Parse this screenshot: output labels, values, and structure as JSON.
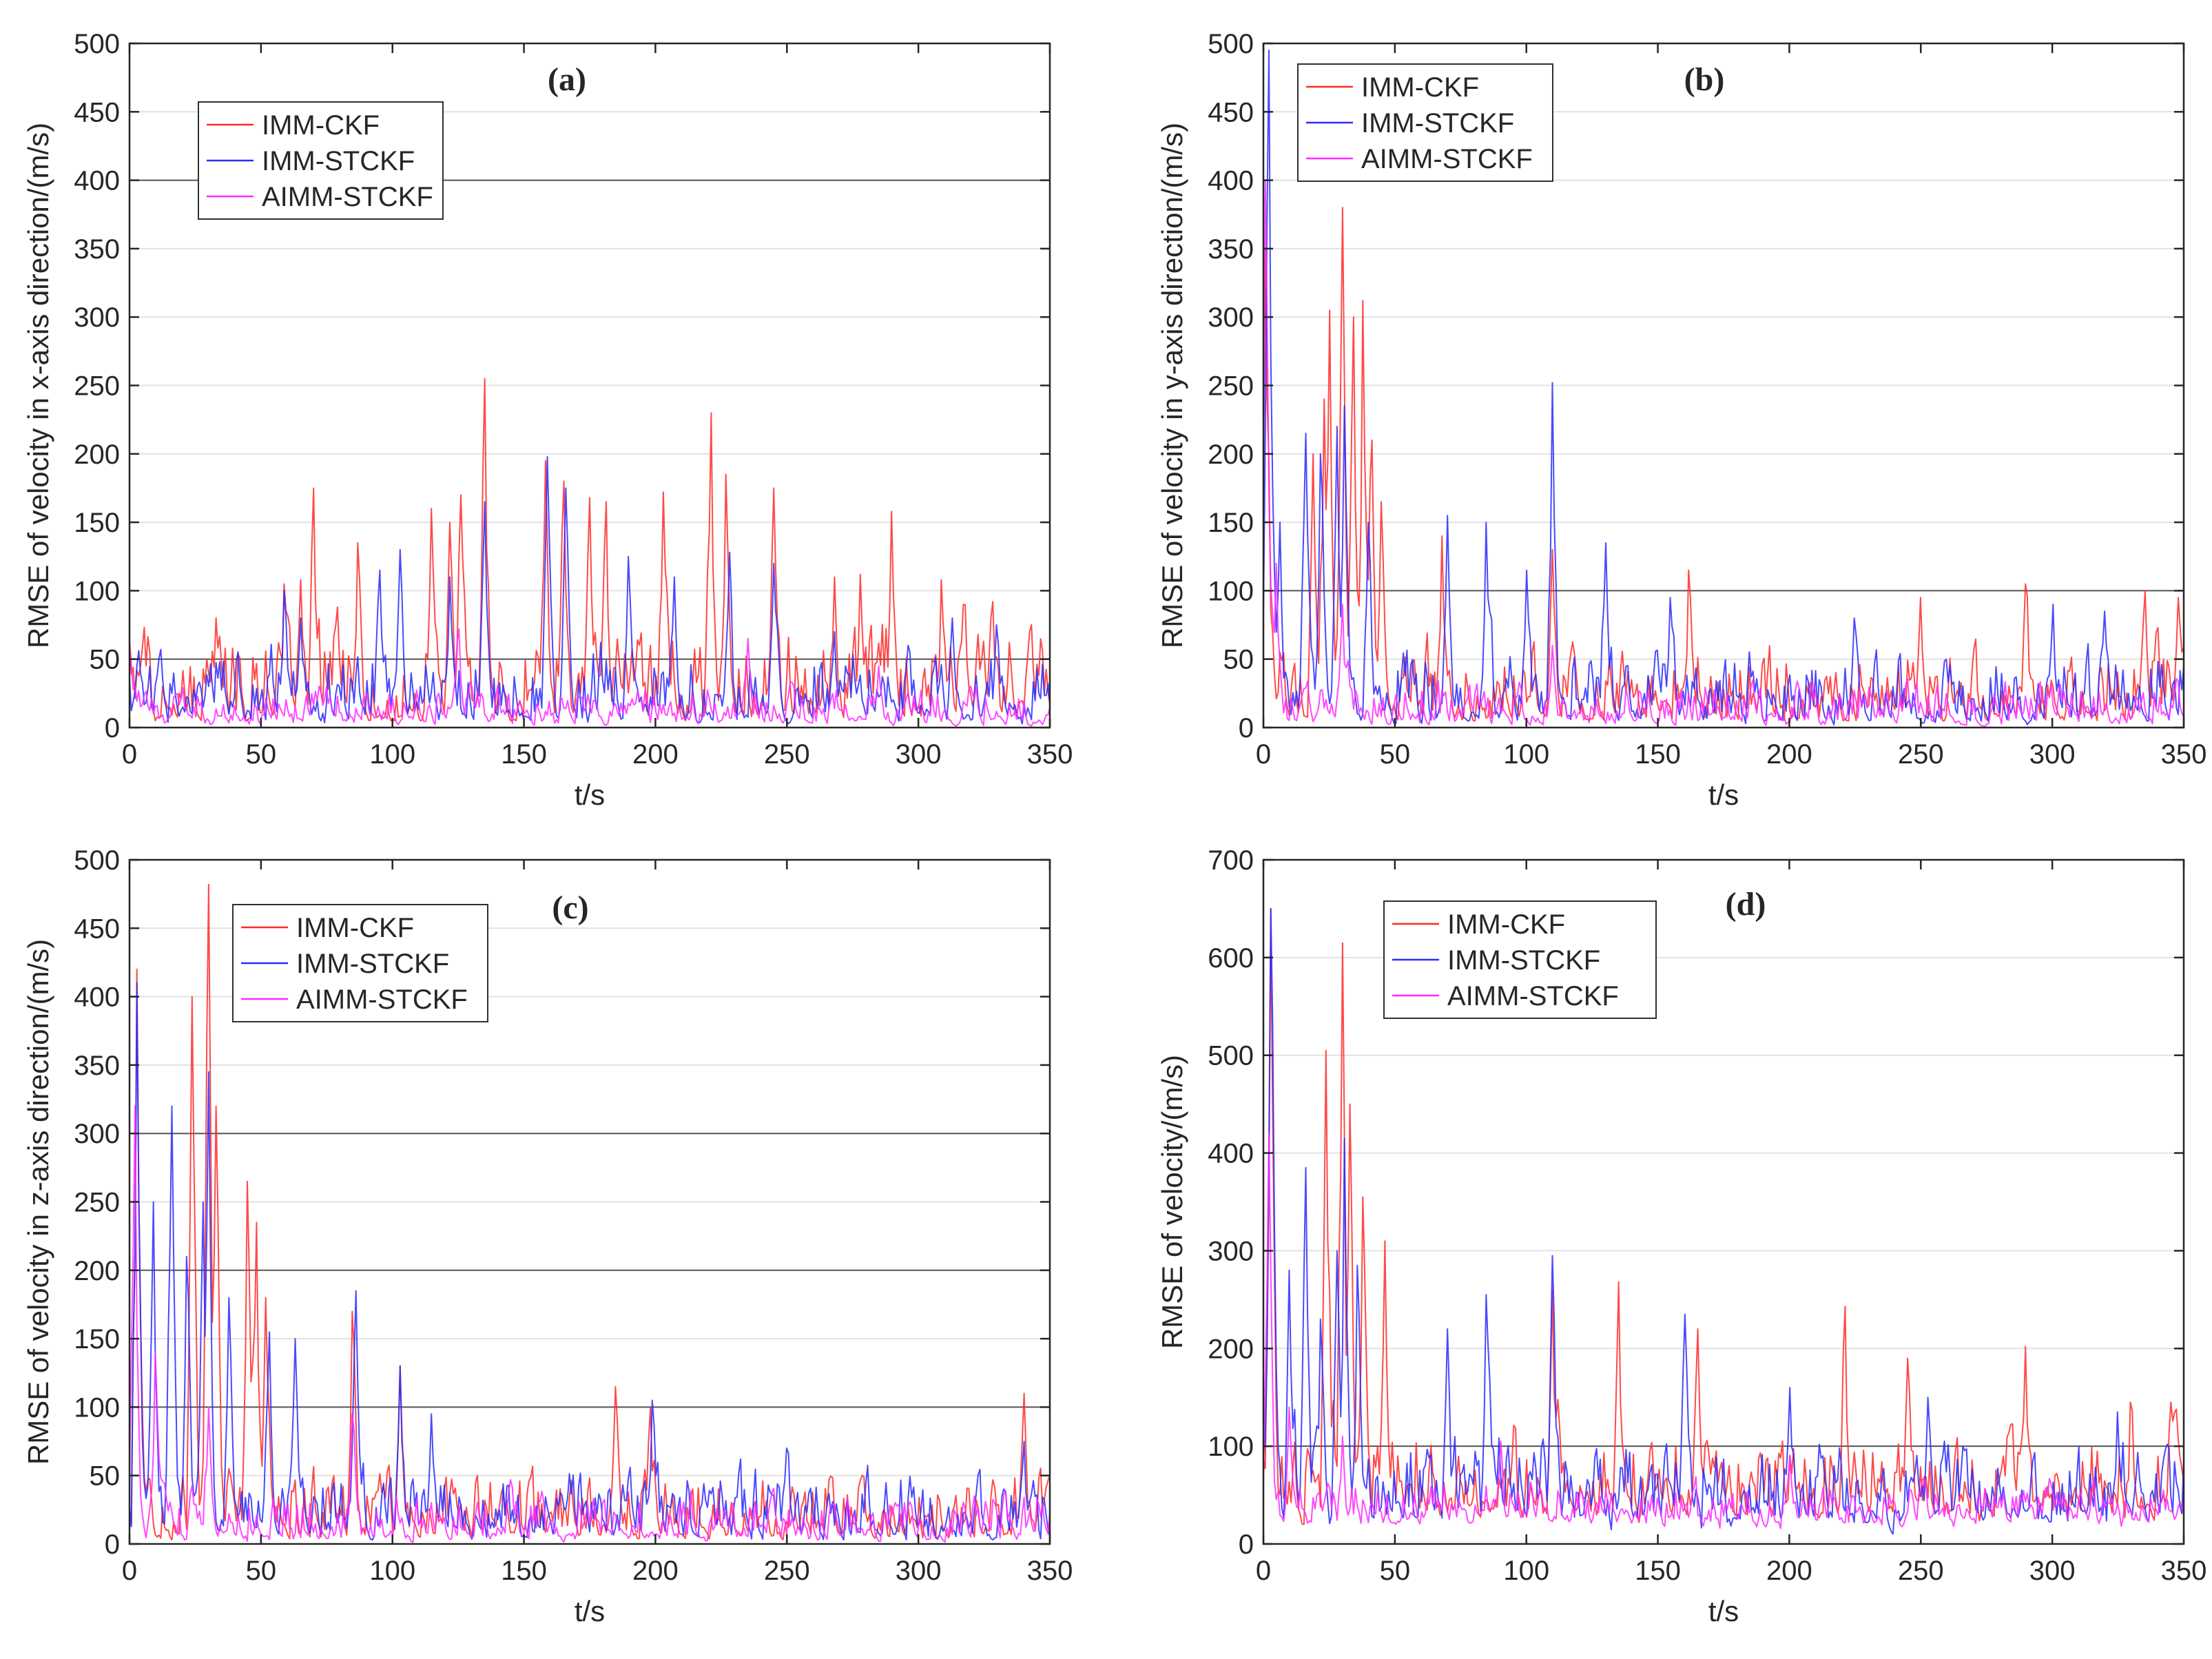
{
  "colors": {
    "IMM-CKF": "#ff2a2a",
    "IMM-STCKF": "#2a2aff",
    "AIMM-STCKF": "#ff2aff",
    "grid": "#e2e2e2",
    "grid_major": "#555555",
    "axis": "#262626"
  },
  "chart_data": [
    {
      "type": "line",
      "panel": "(a)",
      "xlabel": "t/s",
      "ylabel": "RMSE of velocity in x-axis direction/(m/s)",
      "xlim": [
        0,
        350
      ],
      "ylim": [
        0,
        500
      ],
      "xticks": [
        0,
        50,
        100,
        150,
        200,
        250,
        300,
        350
      ],
      "yticks": [
        0,
        50,
        100,
        150,
        200,
        250,
        300,
        350,
        400,
        450,
        500
      ],
      "major_grid": [
        50,
        400
      ],
      "legend": [
        "IMM-CKF",
        "IMM-STCKF",
        "AIMM-STCKF"
      ],
      "legend_placement": "top-left",
      "series": [
        {
          "name": "IMM-CKF",
          "peaks": [
            [
              0,
              60
            ],
            [
              33,
              80
            ],
            [
              59,
              105
            ],
            [
              65,
              108
            ],
            [
              70,
              175
            ],
            [
              87,
              135
            ],
            [
              115,
              160
            ],
            [
              122,
              150
            ],
            [
              126,
              170
            ],
            [
              135,
              255
            ],
            [
              158,
              195
            ],
            [
              165,
              180
            ],
            [
              175,
              168
            ],
            [
              181,
              165
            ],
            [
              203,
              172
            ],
            [
              221,
              230
            ],
            [
              227,
              185
            ],
            [
              245,
              175
            ],
            [
              268,
              110
            ],
            [
              278,
              112
            ],
            [
              290,
              158
            ],
            [
              309,
              108
            ],
            [
              317,
              90
            ],
            [
              328,
              92
            ],
            [
              342,
              70
            ]
          ],
          "base": [
            0,
            80
          ],
          "floor": 5
        },
        {
          "name": "IMM-STCKF",
          "peaks": [
            [
              3,
              45
            ],
            [
              59,
              100
            ],
            [
              65,
              80
            ],
            [
              95,
              115
            ],
            [
              103,
              130
            ],
            [
              122,
              110
            ],
            [
              135,
              165
            ],
            [
              159,
              198
            ],
            [
              166,
              175
            ],
            [
              190,
              125
            ],
            [
              207,
              110
            ],
            [
              228,
              128
            ],
            [
              245,
              120
            ],
            [
              268,
              70
            ],
            [
              296,
              60
            ],
            [
              313,
              80
            ],
            [
              330,
              75
            ]
          ],
          "base": [
            0,
            65
          ],
          "floor": 2
        },
        {
          "name": "AIMM-STCKF",
          "peaks": [
            [
              0,
              65
            ],
            [
              125,
              72
            ],
            [
              235,
              65
            ],
            [
              285,
              45
            ]
          ],
          "base": [
            0,
            35
          ],
          "floor": 0
        }
      ]
    },
    {
      "type": "line",
      "panel": "(b)",
      "xlabel": "t/s",
      "ylabel": "RMSE of velocity in y-axis direction/(m/s)",
      "xlim": [
        0,
        350
      ],
      "ylim": [
        0,
        500
      ],
      "xticks": [
        0,
        50,
        100,
        150,
        200,
        250,
        300,
        350
      ],
      "yticks": [
        0,
        50,
        100,
        150,
        200,
        250,
        300,
        350,
        400,
        450,
        500
      ],
      "major_grid": [
        100
      ],
      "legend": [
        "IMM-CKF",
        "IMM-STCKF",
        "AIMM-STCKF"
      ],
      "legend_placement": "top-left",
      "series": [
        {
          "name": "IMM-CKF",
          "peaks": [
            [
              1,
              350
            ],
            [
              19,
              200
            ],
            [
              23,
              240
            ],
            [
              25,
              305
            ],
            [
              30,
              380
            ],
            [
              34,
              300
            ],
            [
              38,
              312
            ],
            [
              41,
              210
            ],
            [
              45,
              165
            ],
            [
              68,
              140
            ],
            [
              110,
              130
            ],
            [
              162,
              115
            ],
            [
              250,
              95
            ],
            [
              290,
              105
            ],
            [
              335,
              100
            ],
            [
              348,
              95
            ]
          ],
          "base": [
            0,
            70
          ],
          "floor": 5
        },
        {
          "name": "IMM-STCKF",
          "peaks": [
            [
              2,
              495
            ],
            [
              6,
              150
            ],
            [
              16,
              215
            ],
            [
              22,
              200
            ],
            [
              28,
              220
            ],
            [
              31,
              235
            ],
            [
              40,
              150
            ],
            [
              70,
              155
            ],
            [
              85,
              150
            ],
            [
              100,
              115
            ],
            [
              110,
              252
            ],
            [
              130,
              135
            ],
            [
              155,
              95
            ],
            [
              225,
              80
            ],
            [
              300,
              90
            ],
            [
              320,
              85
            ]
          ],
          "base": [
            0,
            65
          ],
          "floor": 2
        },
        {
          "name": "AIMM-STCKF",
          "peaks": [
            [
              1,
              400
            ],
            [
              5,
              120
            ],
            [
              30,
              90
            ],
            [
              110,
              60
            ]
          ],
          "base": [
            0,
            40
          ],
          "floor": 0
        }
      ]
    },
    {
      "type": "line",
      "panel": "(c)",
      "xlabel": "t/s",
      "ylabel": "RMSE of velocity in z-axis direction/(m/s)",
      "xlim": [
        0,
        350
      ],
      "ylim": [
        0,
        500
      ],
      "xticks": [
        0,
        50,
        100,
        150,
        200,
        250,
        300,
        350
      ],
      "yticks": [
        0,
        50,
        100,
        150,
        200,
        250,
        300,
        350,
        400,
        450,
        500
      ],
      "major_grid": [
        100,
        200,
        300
      ],
      "legend": [
        "IMM-CKF",
        "IMM-STCKF",
        "AIMM-STCKF"
      ],
      "legend_placement": "top-left",
      "series": [
        {
          "name": "IMM-CKF",
          "peaks": [
            [
              3,
              420
            ],
            [
              24,
              400
            ],
            [
              30,
              482
            ],
            [
              33,
              320
            ],
            [
              45,
              265
            ],
            [
              48,
              235
            ],
            [
              52,
              180
            ],
            [
              85,
              170
            ],
            [
              103,
              130
            ],
            [
              185,
              115
            ],
            [
              198,
              100
            ],
            [
              340,
              110
            ]
          ],
          "base": [
            0,
            60
          ],
          "floor": 3
        },
        {
          "name": "IMM-STCKF",
          "peaks": [
            [
              3,
              410
            ],
            [
              9,
              250
            ],
            [
              16,
              320
            ],
            [
              22,
              210
            ],
            [
              28,
              250
            ],
            [
              30,
              345
            ],
            [
              38,
              180
            ],
            [
              53,
              155
            ],
            [
              63,
              150
            ],
            [
              86,
              185
            ],
            [
              103,
              130
            ],
            [
              115,
              95
            ],
            [
              199,
              105
            ],
            [
              250,
              70
            ],
            [
              340,
              75
            ]
          ],
          "base": [
            0,
            60
          ],
          "floor": 3
        },
        {
          "name": "AIMM-STCKF",
          "peaks": [
            [
              2,
              320
            ],
            [
              10,
              140
            ],
            [
              30,
              100
            ],
            [
              85,
              95
            ]
          ],
          "base": [
            0,
            45
          ],
          "floor": 0
        }
      ]
    },
    {
      "type": "line",
      "panel": "(d)",
      "xlabel": "t/s",
      "ylabel": "RMSE of velocity/(m/s)",
      "xlim": [
        0,
        350
      ],
      "ylim": [
        0,
        700
      ],
      "xticks": [
        0,
        50,
        100,
        150,
        200,
        250,
        300,
        350
      ],
      "yticks": [
        0,
        100,
        200,
        300,
        400,
        500,
        600,
        700
      ],
      "major_grid": [
        100
      ],
      "legend": [
        "IMM-CKF",
        "IMM-STCKF",
        "AIMM-STCKF"
      ],
      "legend_placement": "top-left",
      "series": [
        {
          "name": "IMM-CKF",
          "peaks": [
            [
              3,
              650
            ],
            [
              24,
              505
            ],
            [
              30,
              615
            ],
            [
              33,
              450
            ],
            [
              38,
              355
            ],
            [
              46,
              310
            ],
            [
              110,
              260
            ],
            [
              135,
              268
            ],
            [
              165,
              220
            ],
            [
              221,
              243
            ],
            [
              245,
              190
            ],
            [
              290,
              202
            ],
            [
              330,
              145
            ],
            [
              345,
              145
            ]
          ],
          "base": [
            30,
            130
          ],
          "floor": 20
        },
        {
          "name": "IMM-STCKF",
          "peaks": [
            [
              3,
              650
            ],
            [
              10,
              280
            ],
            [
              16,
              385
            ],
            [
              22,
              230
            ],
            [
              28,
              300
            ],
            [
              31,
              415
            ],
            [
              36,
              285
            ],
            [
              70,
              220
            ],
            [
              85,
              255
            ],
            [
              110,
              295
            ],
            [
              160,
              235
            ],
            [
              200,
              160
            ],
            [
              253,
              150
            ],
            [
              325,
              135
            ]
          ],
          "base": [
            25,
            120
          ],
          "floor": 10
        },
        {
          "name": "AIMM-STCKF",
          "peaks": [
            [
              2,
              420
            ],
            [
              10,
              140
            ],
            [
              30,
              110
            ],
            [
              90,
              105
            ],
            [
              200,
              90
            ]
          ],
          "base": [
            20,
            70
          ],
          "floor": 15
        }
      ]
    }
  ]
}
